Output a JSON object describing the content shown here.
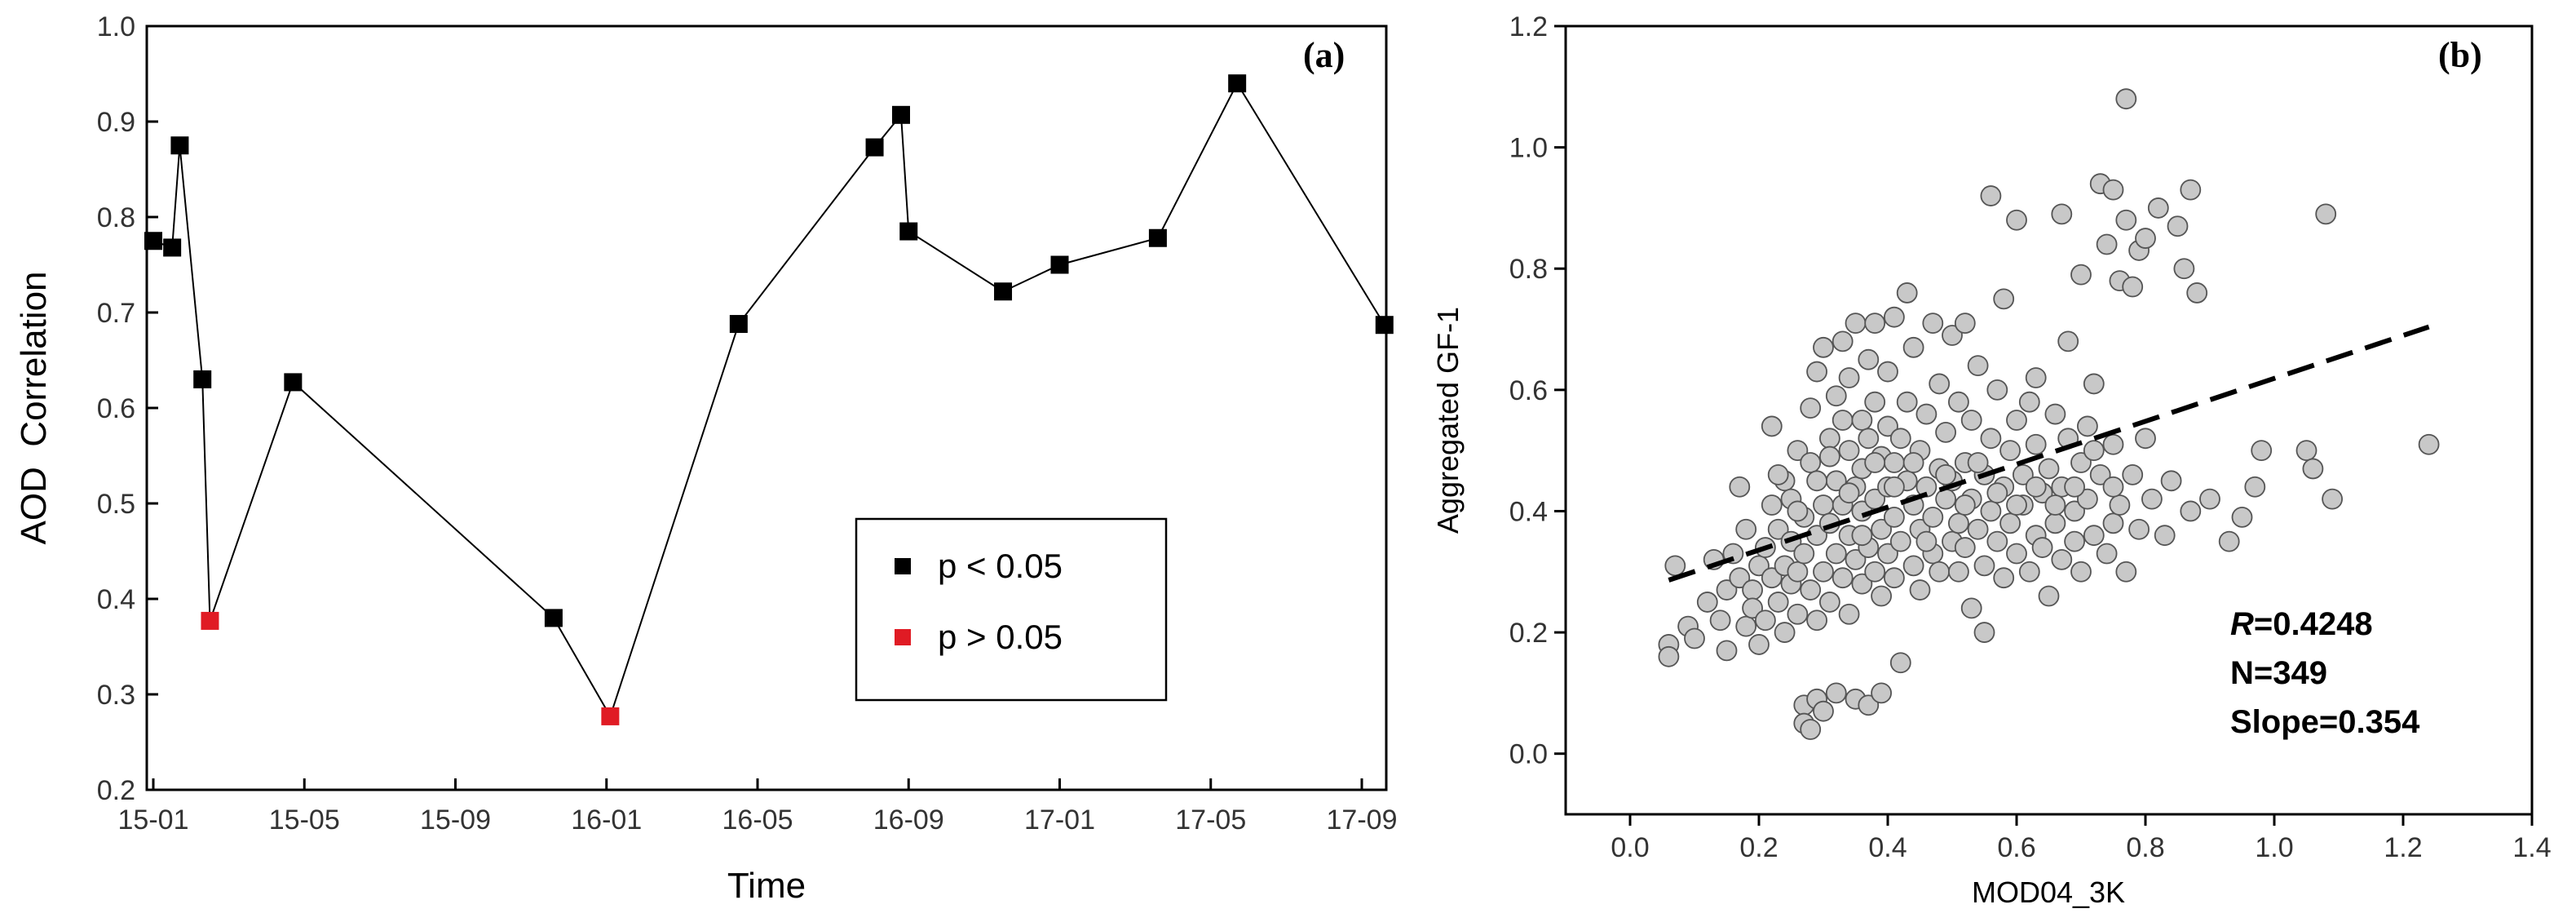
{
  "colors": {
    "significant": "#000000",
    "not_significant": "#e01b24",
    "scatter_fill": "#c8c8c8",
    "scatter_edge": "#555555"
  },
  "chart_data": [
    {
      "type": "line",
      "panel_label": "(a)",
      "title": "",
      "xlabel": "Time",
      "ylabel": "AOD  Correlation",
      "ylim": [
        0.2,
        1.0
      ],
      "yticks": [
        "0.2",
        "0.3",
        "0.4",
        "0.5",
        "0.6",
        "0.7",
        "0.8",
        "0.9",
        "1.0"
      ],
      "xticks": [
        "15-01",
        "15-05",
        "15-09",
        "16-01",
        "16-05",
        "16-09",
        "17-01",
        "17-05",
        "17-09"
      ],
      "xlim_months": [
        0,
        33
      ],
      "points": [
        {
          "x": 0.0,
          "y": 0.775,
          "p": "lt"
        },
        {
          "x": 0.5,
          "y": 0.768,
          "p": "lt"
        },
        {
          "x": 0.7,
          "y": 0.875,
          "p": "lt"
        },
        {
          "x": 1.3,
          "y": 0.63,
          "p": "lt"
        },
        {
          "x": 1.5,
          "y": 0.377,
          "p": "gt"
        },
        {
          "x": 3.7,
          "y": 0.627,
          "p": "lt"
        },
        {
          "x": 10.6,
          "y": 0.38,
          "p": "lt"
        },
        {
          "x": 12.1,
          "y": 0.277,
          "p": "gt"
        },
        {
          "x": 15.5,
          "y": 0.688,
          "p": "lt"
        },
        {
          "x": 19.1,
          "y": 0.873,
          "p": "lt"
        },
        {
          "x": 19.8,
          "y": 0.907,
          "p": "lt"
        },
        {
          "x": 20.0,
          "y": 0.785,
          "p": "lt"
        },
        {
          "x": 22.5,
          "y": 0.722,
          "p": "lt"
        },
        {
          "x": 24.0,
          "y": 0.75,
          "p": "lt"
        },
        {
          "x": 26.6,
          "y": 0.778,
          "p": "lt"
        },
        {
          "x": 28.7,
          "y": 0.94,
          "p": "lt"
        },
        {
          "x": 32.6,
          "y": 0.687,
          "p": "lt"
        }
      ],
      "legend": [
        {
          "label": "p < 0.05",
          "p": "lt"
        },
        {
          "label": "p > 0.05",
          "p": "gt"
        }
      ]
    },
    {
      "type": "scatter",
      "panel_label": "(b)",
      "title": "",
      "xlabel": "MOD04_3K",
      "ylabel": "Aggregated GF-1",
      "xlim": [
        -0.1,
        1.4
      ],
      "ylim": [
        -0.1,
        1.2
      ],
      "xticks": [
        "0.0",
        "0.2",
        "0.4",
        "0.6",
        "0.8",
        "1.0",
        "1.2",
        "1.4"
      ],
      "yticks": [
        "0.0",
        "0.2",
        "0.4",
        "0.6",
        "0.8",
        "1.0",
        "1.2"
      ],
      "fit_line": {
        "slope": 0.354,
        "intercept": 0.265,
        "x_range": [
          0.06,
          1.24
        ]
      },
      "stats": {
        "r_symbol": "R",
        "r_value": "=0.4248",
        "n": "N=349",
        "slope": "Slope=0.354"
      },
      "points": [
        [
          0.06,
          0.18
        ],
        [
          0.06,
          0.16
        ],
        [
          0.07,
          0.31
        ],
        [
          0.09,
          0.21
        ],
        [
          0.1,
          0.19
        ],
        [
          0.12,
          0.25
        ],
        [
          0.13,
          0.32
        ],
        [
          0.14,
          0.22
        ],
        [
          0.15,
          0.27
        ],
        [
          0.15,
          0.17
        ],
        [
          0.16,
          0.33
        ],
        [
          0.17,
          0.29
        ],
        [
          0.17,
          0.44
        ],
        [
          0.18,
          0.21
        ],
        [
          0.18,
          0.37
        ],
        [
          0.19,
          0.27
        ],
        [
          0.19,
          0.24
        ],
        [
          0.2,
          0.31
        ],
        [
          0.2,
          0.18
        ],
        [
          0.21,
          0.22
        ],
        [
          0.21,
          0.34
        ],
        [
          0.22,
          0.54
        ],
        [
          0.22,
          0.41
        ],
        [
          0.22,
          0.29
        ],
        [
          0.23,
          0.25
        ],
        [
          0.23,
          0.37
        ],
        [
          0.24,
          0.2
        ],
        [
          0.24,
          0.31
        ],
        [
          0.24,
          0.45
        ],
        [
          0.25,
          0.28
        ],
        [
          0.25,
          0.35
        ],
        [
          0.25,
          0.42
        ],
        [
          0.26,
          0.23
        ],
        [
          0.26,
          0.5
        ],
        [
          0.26,
          0.3
        ],
        [
          0.27,
          0.08
        ],
        [
          0.27,
          0.05
        ],
        [
          0.27,
          0.39
        ],
        [
          0.27,
          0.33
        ],
        [
          0.28,
          0.04
        ],
        [
          0.28,
          0.27
        ],
        [
          0.28,
          0.48
        ],
        [
          0.28,
          0.57
        ],
        [
          0.29,
          0.36
        ],
        [
          0.29,
          0.22
        ],
        [
          0.29,
          0.63
        ],
        [
          0.29,
          0.09
        ],
        [
          0.3,
          0.41
        ],
        [
          0.3,
          0.3
        ],
        [
          0.3,
          0.67
        ],
        [
          0.3,
          0.07
        ],
        [
          0.31,
          0.52
        ],
        [
          0.31,
          0.38
        ],
        [
          0.31,
          0.25
        ],
        [
          0.32,
          0.45
        ],
        [
          0.32,
          0.33
        ],
        [
          0.32,
          0.59
        ],
        [
          0.32,
          0.1
        ],
        [
          0.33,
          0.55
        ],
        [
          0.33,
          0.29
        ],
        [
          0.33,
          0.41
        ],
        [
          0.33,
          0.68
        ],
        [
          0.34,
          0.36
        ],
        [
          0.34,
          0.5
        ],
        [
          0.34,
          0.23
        ],
        [
          0.34,
          0.62
        ],
        [
          0.35,
          0.44
        ],
        [
          0.35,
          0.32
        ],
        [
          0.35,
          0.09
        ],
        [
          0.35,
          0.71
        ],
        [
          0.36,
          0.4
        ],
        [
          0.36,
          0.55
        ],
        [
          0.36,
          0.28
        ],
        [
          0.36,
          0.47
        ],
        [
          0.37,
          0.34
        ],
        [
          0.37,
          0.65
        ],
        [
          0.37,
          0.08
        ],
        [
          0.37,
          0.52
        ],
        [
          0.38,
          0.42
        ],
        [
          0.38,
          0.3
        ],
        [
          0.38,
          0.58
        ],
        [
          0.38,
          0.71
        ],
        [
          0.39,
          0.37
        ],
        [
          0.39,
          0.49
        ],
        [
          0.39,
          0.1
        ],
        [
          0.39,
          0.26
        ],
        [
          0.4,
          0.44
        ],
        [
          0.4,
          0.54
        ],
        [
          0.4,
          0.33
        ],
        [
          0.4,
          0.63
        ],
        [
          0.41,
          0.39
        ],
        [
          0.41,
          0.48
        ],
        [
          0.41,
          0.72
        ],
        [
          0.41,
          0.29
        ],
        [
          0.42,
          0.52
        ],
        [
          0.42,
          0.35
        ],
        [
          0.42,
          0.15
        ],
        [
          0.43,
          0.45
        ],
        [
          0.43,
          0.58
        ],
        [
          0.43,
          0.76
        ],
        [
          0.44,
          0.31
        ],
        [
          0.44,
          0.41
        ],
        [
          0.44,
          0.67
        ],
        [
          0.45,
          0.37
        ],
        [
          0.45,
          0.5
        ],
        [
          0.45,
          0.27
        ],
        [
          0.46,
          0.44
        ],
        [
          0.46,
          0.56
        ],
        [
          0.47,
          0.33
        ],
        [
          0.47,
          0.71
        ],
        [
          0.47,
          0.39
        ],
        [
          0.48,
          0.47
        ],
        [
          0.48,
          0.61
        ],
        [
          0.48,
          0.3
        ],
        [
          0.49,
          0.42
        ],
        [
          0.49,
          0.53
        ],
        [
          0.5,
          0.35
        ],
        [
          0.5,
          0.69
        ],
        [
          0.5,
          0.45
        ],
        [
          0.51,
          0.38
        ],
        [
          0.51,
          0.58
        ],
        [
          0.51,
          0.3
        ],
        [
          0.52,
          0.48
        ],
        [
          0.52,
          0.71
        ],
        [
          0.52,
          0.34
        ],
        [
          0.53,
          0.42
        ],
        [
          0.53,
          0.55
        ],
        [
          0.53,
          0.24
        ],
        [
          0.54,
          0.37
        ],
        [
          0.54,
          0.64
        ],
        [
          0.55,
          0.46
        ],
        [
          0.55,
          0.31
        ],
        [
          0.55,
          0.2
        ],
        [
          0.56,
          0.52
        ],
        [
          0.56,
          0.92
        ],
        [
          0.56,
          0.4
        ],
        [
          0.57,
          0.35
        ],
        [
          0.57,
          0.6
        ],
        [
          0.58,
          0.44
        ],
        [
          0.58,
          0.75
        ],
        [
          0.58,
          0.29
        ],
        [
          0.59,
          0.5
        ],
        [
          0.59,
          0.38
        ],
        [
          0.6,
          0.55
        ],
        [
          0.6,
          0.33
        ],
        [
          0.6,
          0.88
        ],
        [
          0.61,
          0.46
        ],
        [
          0.61,
          0.41
        ],
        [
          0.62,
          0.58
        ],
        [
          0.62,
          0.3
        ],
        [
          0.63,
          0.36
        ],
        [
          0.63,
          0.51
        ],
        [
          0.63,
          0.62
        ],
        [
          0.64,
          0.43
        ],
        [
          0.64,
          0.34
        ],
        [
          0.65,
          0.47
        ],
        [
          0.65,
          0.26
        ],
        [
          0.66,
          0.56
        ],
        [
          0.66,
          0.38
        ],
        [
          0.67,
          0.89
        ],
        [
          0.67,
          0.44
        ],
        [
          0.67,
          0.32
        ],
        [
          0.68,
          0.52
        ],
        [
          0.68,
          0.68
        ],
        [
          0.69,
          0.4
        ],
        [
          0.69,
          0.35
        ],
        [
          0.7,
          0.48
        ],
        [
          0.7,
          0.79
        ],
        [
          0.7,
          0.3
        ],
        [
          0.71,
          0.54
        ],
        [
          0.71,
          0.42
        ],
        [
          0.72,
          0.36
        ],
        [
          0.72,
          0.61
        ],
        [
          0.73,
          0.94
        ],
        [
          0.73,
          0.46
        ],
        [
          0.74,
          0.33
        ],
        [
          0.74,
          0.84
        ],
        [
          0.75,
          0.93
        ],
        [
          0.75,
          0.51
        ],
        [
          0.75,
          0.38
        ],
        [
          0.76,
          0.78
        ],
        [
          0.76,
          0.41
        ],
        [
          0.77,
          0.88
        ],
        [
          0.77,
          1.08
        ],
        [
          0.77,
          0.3
        ],
        [
          0.78,
          0.77
        ],
        [
          0.78,
          0.46
        ],
        [
          0.79,
          0.83
        ],
        [
          0.79,
          0.37
        ],
        [
          0.8,
          0.85
        ],
        [
          0.8,
          0.52
        ],
        [
          0.81,
          0.42
        ],
        [
          0.82,
          0.9
        ],
        [
          0.83,
          0.36
        ],
        [
          0.84,
          0.45
        ],
        [
          0.85,
          0.87
        ],
        [
          0.86,
          0.8
        ],
        [
          0.87,
          0.93
        ],
        [
          0.87,
          0.4
        ],
        [
          0.88,
          0.76
        ],
        [
          0.9,
          0.42
        ],
        [
          0.93,
          0.35
        ],
        [
          0.95,
          0.39
        ],
        [
          0.97,
          0.44
        ],
        [
          0.98,
          0.5
        ],
        [
          1.05,
          0.5
        ],
        [
          1.06,
          0.47
        ],
        [
          1.08,
          0.89
        ],
        [
          1.09,
          0.42
        ],
        [
          1.24,
          0.51
        ],
        [
          0.23,
          0.46
        ],
        [
          0.26,
          0.4
        ],
        [
          0.29,
          0.45
        ],
        [
          0.31,
          0.49
        ],
        [
          0.34,
          0.43
        ],
        [
          0.36,
          0.36
        ],
        [
          0.38,
          0.48
        ],
        [
          0.41,
          0.44
        ],
        [
          0.44,
          0.48
        ],
        [
          0.46,
          0.35
        ],
        [
          0.49,
          0.46
        ],
        [
          0.52,
          0.41
        ],
        [
          0.54,
          0.48
        ],
        [
          0.57,
          0.43
        ],
        [
          0.6,
          0.41
        ],
        [
          0.63,
          0.44
        ],
        [
          0.66,
          0.41
        ],
        [
          0.69,
          0.44
        ],
        [
          0.72,
          0.5
        ],
        [
          0.75,
          0.44
        ]
      ]
    }
  ]
}
